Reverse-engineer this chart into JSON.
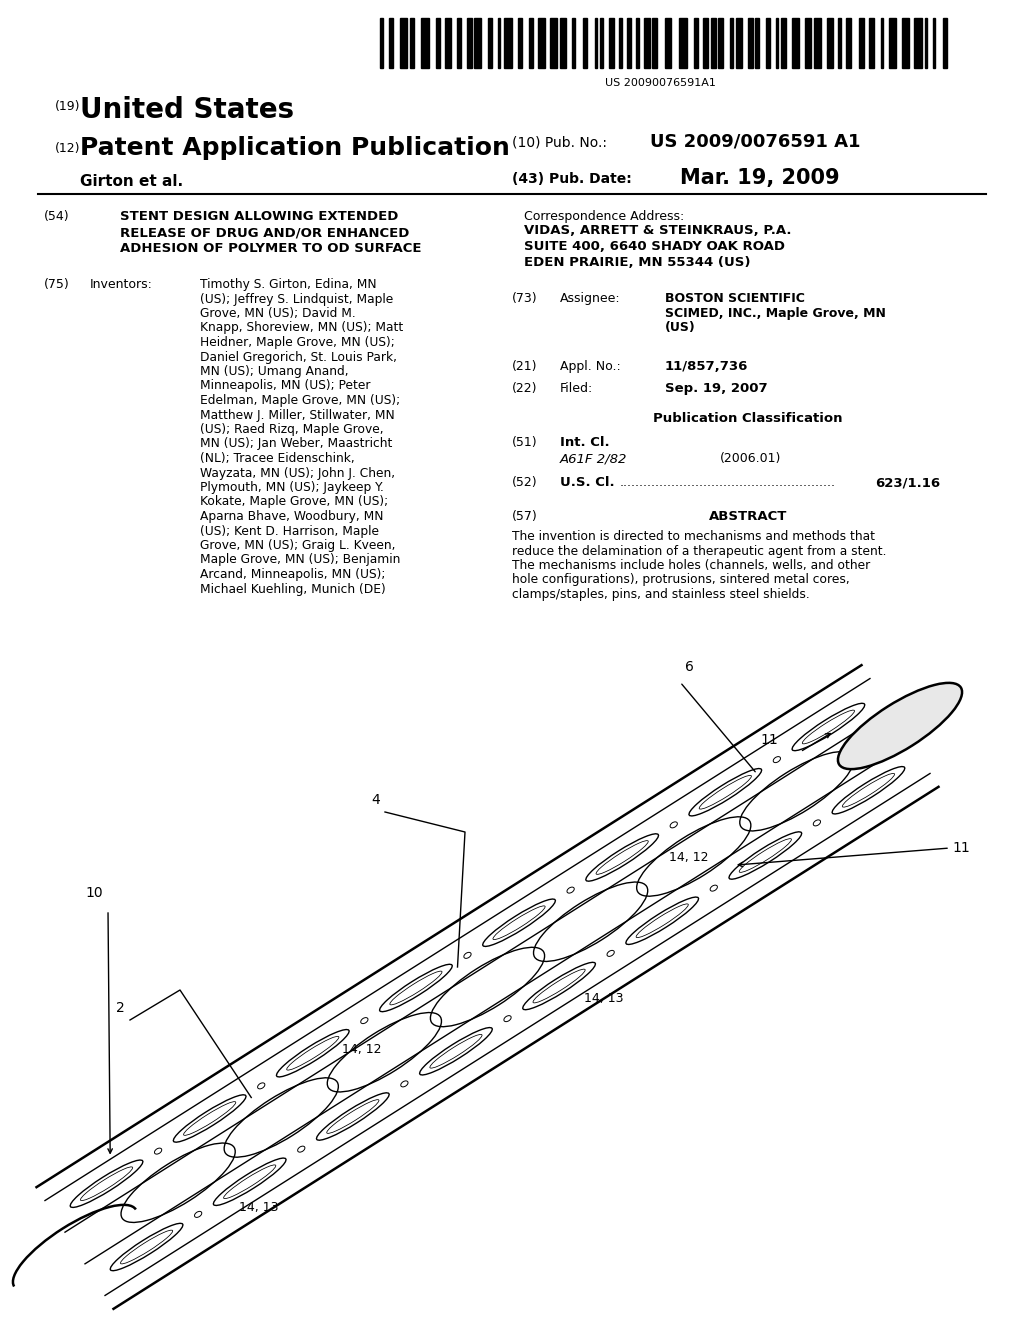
{
  "bg_color": "#ffffff",
  "barcode_text": "US 20090076591A1",
  "country": "United States",
  "pub_type": "Patent Application Publication",
  "inventors_label": "Girton et al.",
  "pub_no_label": "(10) Pub. No.:",
  "pub_no": "US 2009/0076591 A1",
  "pub_date_label": "(43) Pub. Date:",
  "pub_date": "Mar. 19, 2009",
  "num19": "(19)",
  "num12": "(12)",
  "title_num": "(54)",
  "title_line1": "STENT DESIGN ALLOWING EXTENDED",
  "title_line2": "RELEASE OF DRUG AND/OR ENHANCED",
  "title_line3": "ADHESION OF POLYMER TO OD SURFACE",
  "inventors_num": "(75)",
  "inventors_header": "Inventors:",
  "inv_lines": [
    "Timothy S. Girton, Edina, MN",
    "(US); Jeffrey S. Lindquist, Maple",
    "Grove, MN (US); David M.",
    "Knapp, Shoreview, MN (US); Matt",
    "Heidner, Maple Grove, MN (US);",
    "Daniel Gregorich, St. Louis Park,",
    "MN (US); Umang Anand,",
    "Minneapolis, MN (US); Peter",
    "Edelman, Maple Grove, MN (US);",
    "Matthew J. Miller, Stillwater, MN",
    "(US); Raed Rizq, Maple Grove,",
    "MN (US); Jan Weber, Maastricht",
    "(NL); Tracee Eidenschink,",
    "Wayzata, MN (US); John J. Chen,",
    "Plymouth, MN (US); Jaykeep Y.",
    "Kokate, Maple Grove, MN (US);",
    "Aparna Bhave, Woodbury, MN",
    "(US); Kent D. Harrison, Maple",
    "Grove, MN (US); Graig L. Kveen,",
    "Maple Grove, MN (US); Benjamin",
    "Arcand, Minneapolis, MN (US);",
    "Michael Kuehling, Munich (DE)"
  ],
  "corr_header": "Correspondence Address:",
  "corr_line1": "VIDAS, ARRETT & STEINKRAUS, P.A.",
  "corr_line2": "SUITE 400, 6640 SHADY OAK ROAD",
  "corr_line3": "EDEN PRAIRIE, MN 55344 (US)",
  "assignee_num": "(73)",
  "assignee_label": "Assignee:",
  "assignee_lines": [
    "BOSTON SCIENTIFIC",
    "SCIMED, INC., Maple Grove, MN",
    "(US)"
  ],
  "appl_num": "(21)",
  "appl_label": "Appl. No.:",
  "appl_no": "11/857,736",
  "filed_num": "(22)",
  "filed_label": "Filed:",
  "filed_date": "Sep. 19, 2007",
  "pub_class_header": "Publication Classification",
  "intcl_num": "(51)",
  "intcl_label": "Int. Cl.",
  "intcl_class": "A61F 2/82",
  "intcl_year": "(2006.01)",
  "uscl_num": "(52)",
  "uscl_label": "U.S. Cl.",
  "uscl_dots": "......................................................",
  "uscl_val": "623/1.16",
  "abstract_num": "(57)",
  "abstract_header": "ABSTRACT",
  "abstract_lines": [
    "The invention is directed to mechanisms and methods that",
    "reduce the delamination of a therapeutic agent from a stent.",
    "The mechanisms include holes (channels, wells, and other",
    "hole configurations), protrusions, sintered metal cores,",
    "clamps/staples, pins, and stainless steel shields."
  ]
}
